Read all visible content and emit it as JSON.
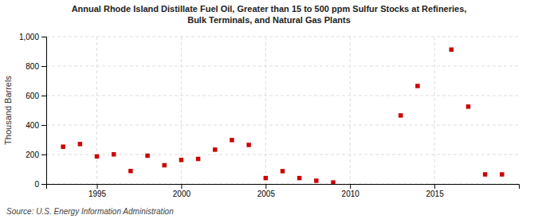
{
  "chart_data": {
    "type": "scatter",
    "title": "Annual Rhode Island Distillate Fuel Oil, Greater than 15 to 500 ppm Sulfur Stocks at Refineries,\nBulk Terminals, and Natural Gas Plants",
    "y_label": "Thousand Barrels",
    "source": "Source: U.S. Energy Information Administration",
    "x": [
      1993,
      1994,
      1995,
      1996,
      1997,
      1998,
      1999,
      2000,
      2001,
      2002,
      2003,
      2004,
      2005,
      2006,
      2007,
      2008,
      2009,
      2013,
      2014,
      2016,
      2017,
      2018,
      2019
    ],
    "values": [
      253,
      271,
      187,
      201,
      88,
      192,
      127,
      163,
      170,
      233,
      298,
      265,
      40,
      87,
      40,
      22,
      10,
      465,
      665,
      912,
      525,
      65,
      65
    ],
    "color": "#cc0000",
    "marker": "square",
    "xlim": [
      1992,
      2020
    ],
    "xticks": [
      1995,
      2000,
      2005,
      2010,
      2015
    ],
    "ylim": [
      0,
      1000
    ],
    "yticks": [
      0,
      200,
      400,
      600,
      800,
      {
        "value": 1000,
        "label": "1,000"
      }
    ],
    "grid": true
  }
}
